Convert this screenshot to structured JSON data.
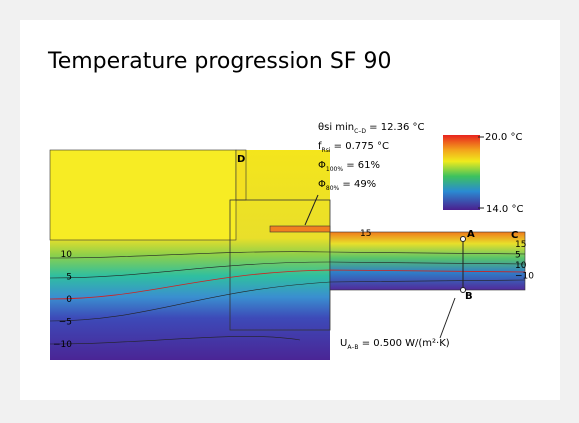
{
  "header": {
    "title": "Temperature progression SF 90"
  },
  "annotations": [
    {
      "symbol": "θsi min",
      "sub": "C–D",
      "text": " = 12.36 °C"
    },
    {
      "symbol": "f",
      "sub": "Rsi",
      "text": " = 0.775 °C"
    },
    {
      "symbol": "Φ",
      "sub": "100%",
      "text": " = 61%"
    },
    {
      "symbol": "Φ",
      "sub": "80%",
      "text": " = 49%"
    }
  ],
  "legend": {
    "max": "20.0 °C",
    "min": "14.0 °C"
  },
  "points": {
    "a": "A",
    "b": "B",
    "c": "C",
    "d": "D"
  },
  "isotherms": {
    "left": [
      "10",
      "5",
      "0",
      "−5",
      "−10"
    ],
    "right": [
      "15",
      "5",
      "10",
      "−10"
    ],
    "top": "15"
  },
  "u_value": {
    "symbol": "U",
    "sub": "A–B",
    "text": " = 0.500 W/(m²·K)"
  }
}
